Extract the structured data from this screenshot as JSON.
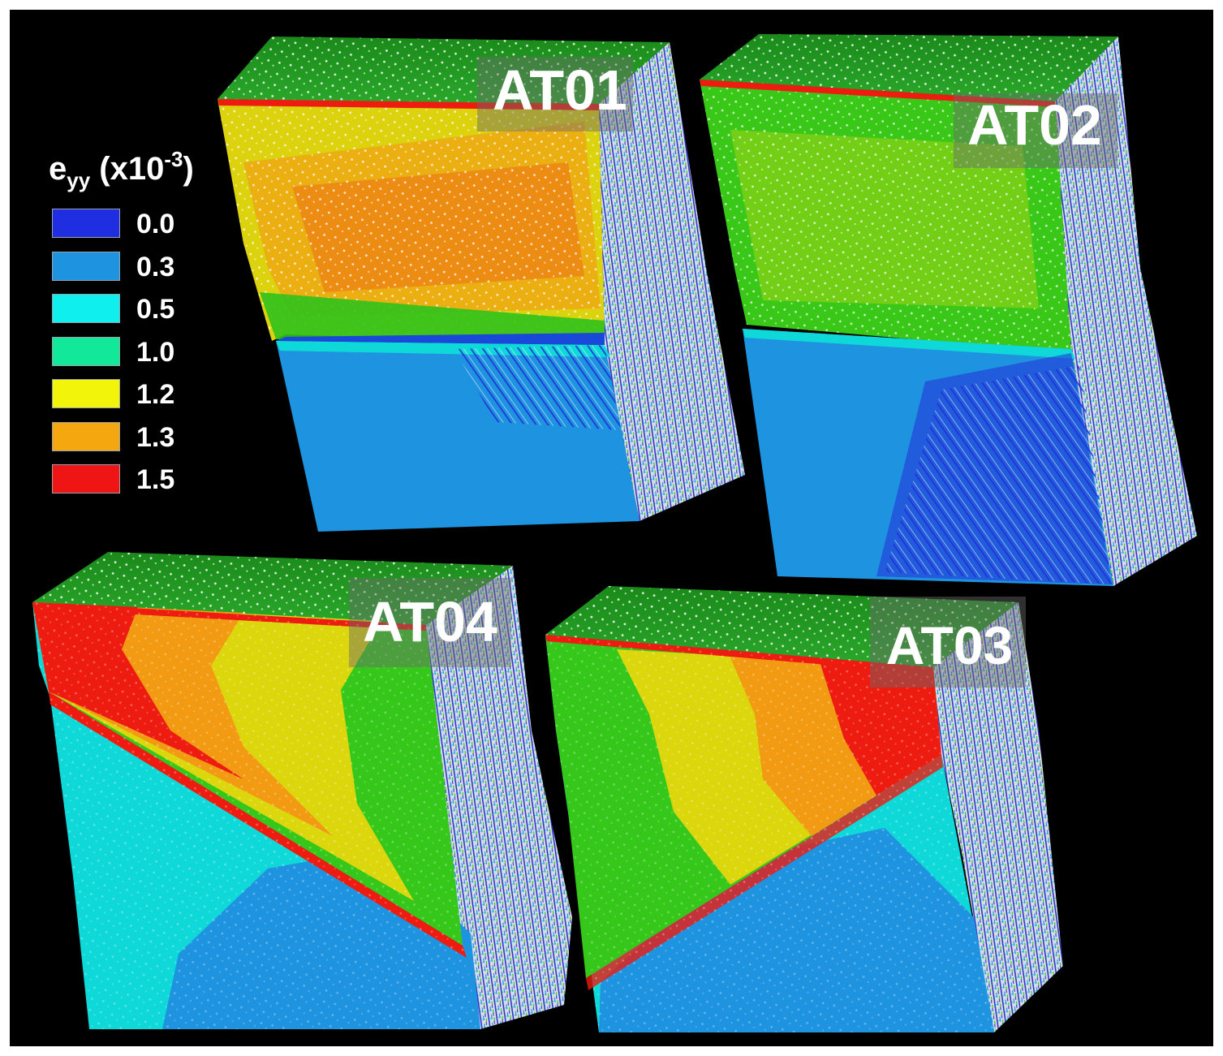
{
  "specimens": [
    {
      "id": "AT01"
    },
    {
      "id": "AT02"
    },
    {
      "id": "AT04"
    },
    {
      "id": "AT03"
    }
  ],
  "legend": {
    "title_main": "e",
    "title_sub": "yy",
    "title_paren_open": " (x10",
    "title_sup": "-3",
    "title_paren_close": ")",
    "entries": [
      {
        "label": "0.0",
        "color": "#1f2ee0"
      },
      {
        "label": "0.3",
        "color": "#1e93e0"
      },
      {
        "label": "0.5",
        "color": "#0ff0ee"
      },
      {
        "label": "1.0",
        "color": "#12e89a"
      },
      {
        "label": "1.2",
        "color": "#f2f50a"
      },
      {
        "label": "1.3",
        "color": "#f4a70f"
      },
      {
        "label": "1.5",
        "color": "#ef1515"
      }
    ]
  },
  "colors": {
    "background": "#000000",
    "green": "#35c81a",
    "light_blue": "#1e93e0",
    "cyan": "#0fd8d8",
    "yellow": "#dcd60c",
    "orange": "#f29a12",
    "red": "#ee1b10"
  }
}
